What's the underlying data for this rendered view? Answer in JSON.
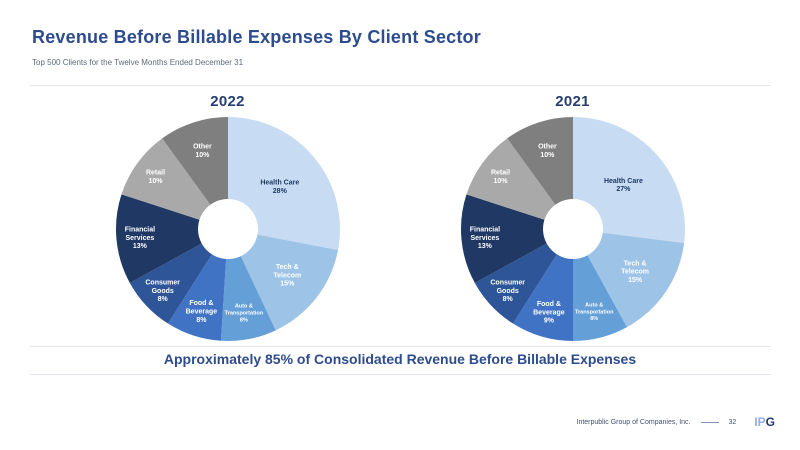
{
  "slide": {
    "title": "Revenue Before Billable Expenses By Client Sector",
    "subtitle": "Top 500 Clients for the Twelve Months Ended December 31",
    "callout": "Approximately 85% of Consolidated Revenue Before Billable Expenses",
    "footer": {
      "company": "Interpublic Group of Companies, Inc.",
      "page_number": "32",
      "logo_light": "IP",
      "logo_dark": "G"
    }
  },
  "colors": {
    "title": "#2D4C8E",
    "subtitle_text": "#5D6B7A",
    "year_label": "#27406F",
    "divider": "#E3E6EA",
    "footer_text": "#3E4F6E",
    "footer_line": "#8096B8",
    "logo_light": "#8FAEDC",
    "logo_dark": "#1F3864"
  },
  "chart_data": [
    {
      "type": "pie",
      "title": "2022",
      "donut": true,
      "inner_radius_ratio": 0.27,
      "start": "top",
      "direction": "clockwise",
      "unit": "%",
      "categories": [
        "Health Care",
        "Tech & Telecom",
        "Auto & Transportation",
        "Food & Beverage",
        "Consumer Goods",
        "Financial Services",
        "Retail",
        "Other"
      ],
      "values": [
        28,
        15,
        8,
        8,
        8,
        13,
        10,
        10
      ],
      "colors": [
        "#C7DCF2",
        "#9DC3E6",
        "#649FD8",
        "#4173C4",
        "#2E5597",
        "#1F3864",
        "#A9A9A9",
        "#7F7F7F"
      ],
      "label_colors": [
        "#1F3864",
        "#FFFFFF",
        "#FFFFFF",
        "#FFFFFF",
        "#FFFFFF",
        "#FFFFFF",
        "#FFFFFF",
        "#FFFFFF"
      ],
      "label_lines": [
        [
          "Health Care"
        ],
        [
          "Tech &",
          "Telecom"
        ],
        [
          "Auto &",
          "Transportation"
        ],
        [
          "Food &",
          "Beverage"
        ],
        [
          "Consumer",
          "Goods"
        ],
        [
          "Financial",
          "Services"
        ],
        [
          "Retail"
        ],
        [
          "Other"
        ]
      ],
      "small_label_indices": [
        2
      ]
    },
    {
      "type": "pie",
      "title": "2021",
      "donut": true,
      "inner_radius_ratio": 0.27,
      "start": "top",
      "direction": "clockwise",
      "unit": "%",
      "categories": [
        "Health Care",
        "Tech & Telecom",
        "Auto & Transportation",
        "Food & Beverage",
        "Consumer Goods",
        "Financial Services",
        "Retail",
        "Other"
      ],
      "values": [
        27,
        15,
        8,
        9,
        8,
        13,
        10,
        10
      ],
      "colors": [
        "#C7DCF2",
        "#9DC3E6",
        "#649FD8",
        "#4173C4",
        "#2E5597",
        "#1F3864",
        "#A9A9A9",
        "#7F7F7F"
      ],
      "label_colors": [
        "#1F3864",
        "#FFFFFF",
        "#FFFFFF",
        "#FFFFFF",
        "#FFFFFF",
        "#FFFFFF",
        "#FFFFFF",
        "#FFFFFF"
      ],
      "label_lines": [
        [
          "Health Care"
        ],
        [
          "Tech &",
          "Telecom"
        ],
        [
          "Auto &",
          "Transportation"
        ],
        [
          "Food &",
          "Beverage"
        ],
        [
          "Consumer",
          "Goods"
        ],
        [
          "Financial",
          "Services"
        ],
        [
          "Retail"
        ],
        [
          "Other"
        ]
      ],
      "small_label_indices": [
        2
      ]
    }
  ]
}
